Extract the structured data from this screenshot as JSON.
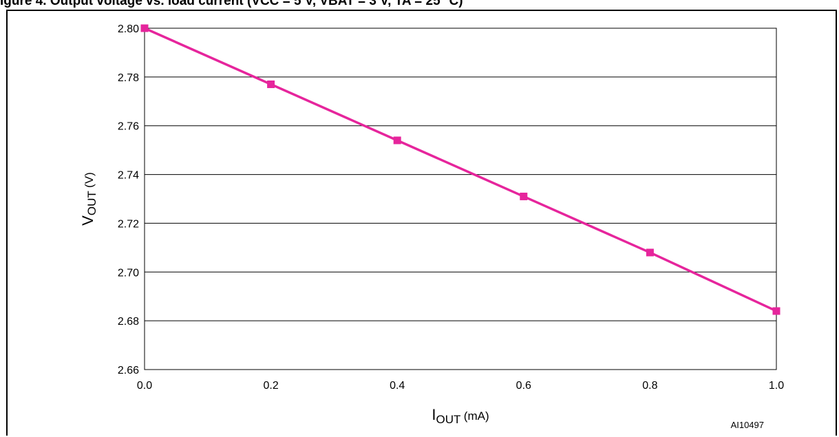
{
  "caption": "igure 4.   Output voltage vs. load current (VCC = 5 V, VBAT = 3 V, TA = 25 °C)",
  "figure_code": "AI10497",
  "colors": {
    "series": "#e6259c",
    "grid": "#000000",
    "background": "#ffffff"
  },
  "chart_data": {
    "type": "line",
    "title": "",
    "xlabel": "I_OUT (mA)",
    "ylabel": "V_OUT (V)",
    "xlabel_parts": {
      "main": "I",
      "sub": "OUT",
      "rest": " (mA)"
    },
    "ylabel_parts": {
      "main": "V",
      "sub": "OUT",
      "rest": " (V)"
    },
    "xlim": [
      0.0,
      1.0
    ],
    "ylim": [
      2.66,
      2.8
    ],
    "x_ticks": [
      "0.0",
      "0.2",
      "0.4",
      "0.6",
      "0.8",
      "1.0"
    ],
    "y_ticks": [
      "2.66",
      "2.68",
      "2.70",
      "2.72",
      "2.74",
      "2.76",
      "2.78",
      "2.80"
    ],
    "grid": "horizontal",
    "marker": "square",
    "series": [
      {
        "x": [
          0.0,
          0.2,
          0.4,
          0.6,
          0.8,
          1.0
        ],
        "values": [
          2.8,
          2.777,
          2.754,
          2.731,
          2.708,
          2.684
        ]
      }
    ]
  }
}
